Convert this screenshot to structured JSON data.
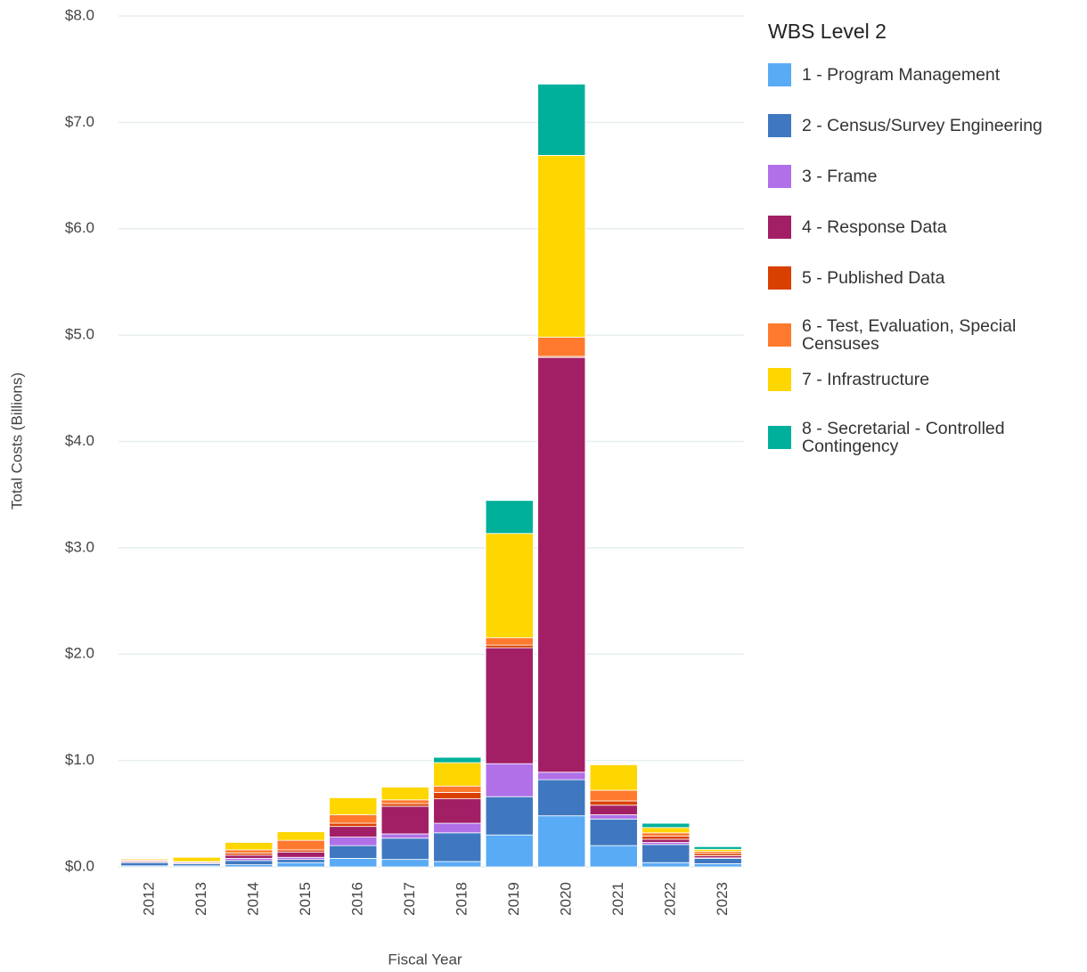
{
  "chart_data": {
    "type": "stacked_bar",
    "x_label": "Fiscal Year",
    "y_label": "Total Costs (Billions)",
    "legend_title": "WBS Level 2",
    "legend": "right",
    "grid": true,
    "categories": [
      "2012",
      "2013",
      "2014",
      "2015",
      "2016",
      "2017",
      "2018",
      "2019",
      "2020",
      "2021",
      "2022",
      "2023"
    ],
    "ylim": [
      0,
      8
    ],
    "yticks": [
      {
        "value": 0,
        "label": "$0.0"
      },
      {
        "value": 1,
        "label": "$1.0"
      },
      {
        "value": 2,
        "label": "$2.0"
      },
      {
        "value": 3,
        "label": "$3.0"
      },
      {
        "value": 4,
        "label": "$4.0"
      },
      {
        "value": 5,
        "label": "$5.0"
      },
      {
        "value": 6,
        "label": "$6.0"
      },
      {
        "value": 7,
        "label": "$7.0"
      },
      {
        "value": 8,
        "label": "$8.0"
      }
    ],
    "series": [
      {
        "name": "1 - Program Management",
        "color": "#5aabf5",
        "values": [
          0.01,
          0.01,
          0.02,
          0.04,
          0.08,
          0.07,
          0.05,
          0.3,
          0.48,
          0.2,
          0.04,
          0.03
        ]
      },
      {
        "name": "2 - Census/Survey Engineering",
        "color": "#3f78c0",
        "values": [
          0.03,
          0.02,
          0.04,
          0.03,
          0.12,
          0.2,
          0.27,
          0.36,
          0.34,
          0.25,
          0.17,
          0.05
        ]
      },
      {
        "name": "3 - Frame",
        "color": "#b070e8",
        "values": [
          0,
          0,
          0.02,
          0.02,
          0.08,
          0.04,
          0.09,
          0.31,
          0.07,
          0.04,
          0.02,
          0.005
        ]
      },
      {
        "name": "4 - Response Data",
        "color": "#a21f65",
        "values": [
          0.01,
          0.01,
          0.03,
          0.05,
          0.1,
          0.26,
          0.23,
          1.09,
          3.9,
          0.09,
          0.03,
          0.02
        ]
      },
      {
        "name": "5 - Published Data",
        "color": "#d94000",
        "values": [
          0.005,
          0.005,
          0.02,
          0.02,
          0.03,
          0.025,
          0.06,
          0.025,
          0.01,
          0.04,
          0.03,
          0.02
        ]
      },
      {
        "name": "6 - Test, Evaluation, Special Censuses",
        "color": "#ff7a2e",
        "values": [
          0.01,
          0.005,
          0.03,
          0.09,
          0.08,
          0.035,
          0.06,
          0.07,
          0.18,
          0.1,
          0.03,
          0.02
        ]
      },
      {
        "name": "7 - Infrastructure",
        "color": "#fed600",
        "values": [
          0.01,
          0.04,
          0.07,
          0.08,
          0.16,
          0.12,
          0.22,
          0.98,
          1.71,
          0.24,
          0.05,
          0.02
        ]
      },
      {
        "name": "8 - Secretarial - Controlled Contingency",
        "color": "#00b09b",
        "values": [
          0,
          0,
          0,
          0,
          0,
          0,
          0.05,
          0.31,
          0.67,
          0,
          0.04,
          0.025
        ]
      }
    ]
  }
}
